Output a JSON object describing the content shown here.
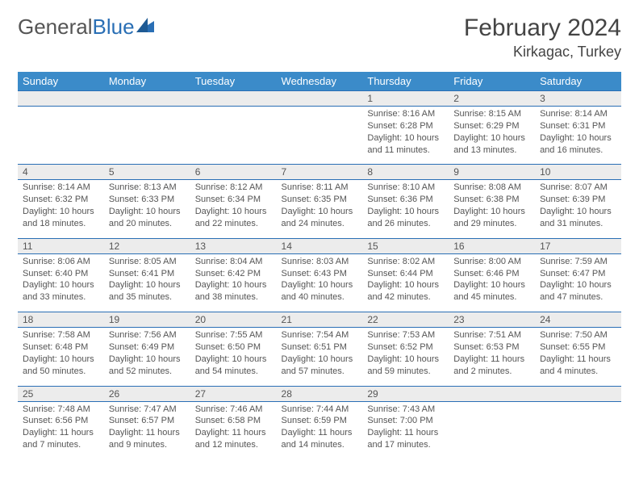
{
  "logo": {
    "text1": "General",
    "text2": "Blue"
  },
  "title": "February 2024",
  "location": "Kirkagac, Turkey",
  "colors": {
    "header_bg": "#3b8bc9",
    "border": "#2a6fb5",
    "daterow_bg": "#ececec",
    "text": "#555555"
  },
  "weekdays": [
    "Sunday",
    "Monday",
    "Tuesday",
    "Wednesday",
    "Thursday",
    "Friday",
    "Saturday"
  ],
  "weeks": [
    {
      "dates": [
        "",
        "",
        "",
        "",
        "1",
        "2",
        "3"
      ],
      "details": [
        "",
        "",
        "",
        "",
        "Sunrise: 8:16 AM\nSunset: 6:28 PM\nDaylight: 10 hours and 11 minutes.",
        "Sunrise: 8:15 AM\nSunset: 6:29 PM\nDaylight: 10 hours and 13 minutes.",
        "Sunrise: 8:14 AM\nSunset: 6:31 PM\nDaylight: 10 hours and 16 minutes."
      ]
    },
    {
      "dates": [
        "4",
        "5",
        "6",
        "7",
        "8",
        "9",
        "10"
      ],
      "details": [
        "Sunrise: 8:14 AM\nSunset: 6:32 PM\nDaylight: 10 hours and 18 minutes.",
        "Sunrise: 8:13 AM\nSunset: 6:33 PM\nDaylight: 10 hours and 20 minutes.",
        "Sunrise: 8:12 AM\nSunset: 6:34 PM\nDaylight: 10 hours and 22 minutes.",
        "Sunrise: 8:11 AM\nSunset: 6:35 PM\nDaylight: 10 hours and 24 minutes.",
        "Sunrise: 8:10 AM\nSunset: 6:36 PM\nDaylight: 10 hours and 26 minutes.",
        "Sunrise: 8:08 AM\nSunset: 6:38 PM\nDaylight: 10 hours and 29 minutes.",
        "Sunrise: 8:07 AM\nSunset: 6:39 PM\nDaylight: 10 hours and 31 minutes."
      ]
    },
    {
      "dates": [
        "11",
        "12",
        "13",
        "14",
        "15",
        "16",
        "17"
      ],
      "details": [
        "Sunrise: 8:06 AM\nSunset: 6:40 PM\nDaylight: 10 hours and 33 minutes.",
        "Sunrise: 8:05 AM\nSunset: 6:41 PM\nDaylight: 10 hours and 35 minutes.",
        "Sunrise: 8:04 AM\nSunset: 6:42 PM\nDaylight: 10 hours and 38 minutes.",
        "Sunrise: 8:03 AM\nSunset: 6:43 PM\nDaylight: 10 hours and 40 minutes.",
        "Sunrise: 8:02 AM\nSunset: 6:44 PM\nDaylight: 10 hours and 42 minutes.",
        "Sunrise: 8:00 AM\nSunset: 6:46 PM\nDaylight: 10 hours and 45 minutes.",
        "Sunrise: 7:59 AM\nSunset: 6:47 PM\nDaylight: 10 hours and 47 minutes."
      ]
    },
    {
      "dates": [
        "18",
        "19",
        "20",
        "21",
        "22",
        "23",
        "24"
      ],
      "details": [
        "Sunrise: 7:58 AM\nSunset: 6:48 PM\nDaylight: 10 hours and 50 minutes.",
        "Sunrise: 7:56 AM\nSunset: 6:49 PM\nDaylight: 10 hours and 52 minutes.",
        "Sunrise: 7:55 AM\nSunset: 6:50 PM\nDaylight: 10 hours and 54 minutes.",
        "Sunrise: 7:54 AM\nSunset: 6:51 PM\nDaylight: 10 hours and 57 minutes.",
        "Sunrise: 7:53 AM\nSunset: 6:52 PM\nDaylight: 10 hours and 59 minutes.",
        "Sunrise: 7:51 AM\nSunset: 6:53 PM\nDaylight: 11 hours and 2 minutes.",
        "Sunrise: 7:50 AM\nSunset: 6:55 PM\nDaylight: 11 hours and 4 minutes."
      ]
    },
    {
      "dates": [
        "25",
        "26",
        "27",
        "28",
        "29",
        "",
        ""
      ],
      "details": [
        "Sunrise: 7:48 AM\nSunset: 6:56 PM\nDaylight: 11 hours and 7 minutes.",
        "Sunrise: 7:47 AM\nSunset: 6:57 PM\nDaylight: 11 hours and 9 minutes.",
        "Sunrise: 7:46 AM\nSunset: 6:58 PM\nDaylight: 11 hours and 12 minutes.",
        "Sunrise: 7:44 AM\nSunset: 6:59 PM\nDaylight: 11 hours and 14 minutes.",
        "Sunrise: 7:43 AM\nSunset: 7:00 PM\nDaylight: 11 hours and 17 minutes.",
        "",
        ""
      ]
    }
  ]
}
